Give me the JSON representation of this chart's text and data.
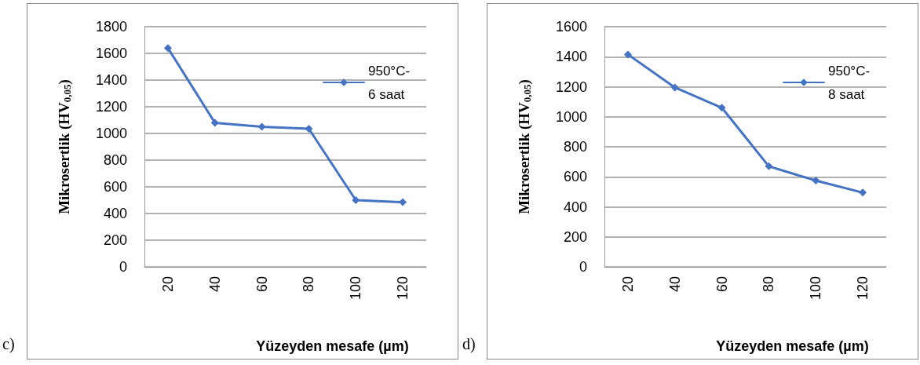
{
  "chart_data": [
    {
      "type": "line",
      "categories": [
        "20",
        "40",
        "60",
        "80",
        "100",
        "120"
      ],
      "series": [
        {
          "name": "950°C-6 saat",
          "color": "#4472c4",
          "values": [
            1640,
            1080,
            1050,
            1035,
            500,
            485
          ]
        }
      ],
      "ylim": [
        0,
        1800
      ],
      "yticks": [
        0,
        200,
        400,
        600,
        800,
        1000,
        1200,
        1400,
        1600,
        1800
      ],
      "ylabel": "Mikrosertlik (HV$_{0,05}$)",
      "xlabel": "Yüzeyden mesafe (µm)",
      "annotations": [
        "c)"
      ],
      "grid": "y",
      "legend": "top right",
      "marker": "diamond"
    },
    {
      "type": "line",
      "categories": [
        "20",
        "40",
        "60",
        "80",
        "100",
        "120"
      ],
      "series": [
        {
          "name": "950°C-8 saat",
          "color": "#4472c4",
          "values": [
            1415,
            1195,
            1060,
            670,
            575,
            495
          ]
        }
      ],
      "ylim": [
        0,
        1600
      ],
      "yticks": [
        0,
        200,
        400,
        600,
        800,
        1000,
        1200,
        1400,
        1600
      ],
      "ylabel": "Mikrosertlik (HV$_{0,05}$)",
      "xlabel": "Yüzeyden mesafe (µm)",
      "annotations": [
        "d)"
      ],
      "grid": "y",
      "legend": "top right",
      "marker": "diamond"
    }
  ]
}
